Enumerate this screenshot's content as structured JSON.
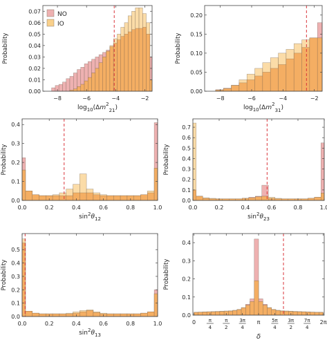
{
  "chart_data": [
    {
      "type": "bar",
      "ylabel": "Probability",
      "xlabel": "log10(Δm²21)",
      "xlim": [
        -9.0,
        -1.5
      ],
      "ylim": [
        0,
        0.075
      ],
      "xticks": [
        {
          "v": -8,
          "t": "−8"
        },
        {
          "v": -6,
          "t": "−6"
        },
        {
          "v": -4,
          "t": "−4"
        },
        {
          "v": -2,
          "t": "−2"
        }
      ],
      "yticks": [
        {
          "v": 0.0,
          "t": "0.00"
        },
        {
          "v": 0.01,
          "t": "0.01"
        },
        {
          "v": 0.02,
          "t": "0.02"
        },
        {
          "v": 0.03,
          "t": "0.03"
        },
        {
          "v": 0.04,
          "t": "0.04"
        },
        {
          "v": 0.05,
          "t": "0.05"
        },
        {
          "v": 0.06,
          "t": "0.06"
        },
        {
          "v": 0.07,
          "t": "0.07"
        }
      ],
      "bin_start": -8.4,
      "bin_width": 0.25,
      "marker": -4.1,
      "legend": {
        "position": "top-left",
        "entries": [
          {
            "label": "NO",
            "color": "#eeb1b1"
          },
          {
            "label": "IO",
            "color": "#f9d08b"
          }
        ]
      },
      "series": [
        {
          "name": "NO",
          "color": "#eeb1b1",
          "values": [
            0.003,
            0.005,
            0.006,
            0.008,
            0.011,
            0.013,
            0.016,
            0.019,
            0.021,
            0.024,
            0.026,
            0.028,
            0.03,
            0.032,
            0.034,
            0.036,
            0.039,
            0.042,
            0.045,
            0.048,
            0.05,
            0.052,
            0.054,
            0.055,
            0.055,
            0.056,
            0.05,
            0.03
          ]
        },
        {
          "name": "IO",
          "color": "#f9d08b",
          "values": [
            0,
            0,
            0,
            0,
            0,
            0.001,
            0.002,
            0.004,
            0.006,
            0.009,
            0.012,
            0.016,
            0.02,
            0.025,
            0.03,
            0.035,
            0.04,
            0.046,
            0.05,
            0.056,
            0.06,
            0.066,
            0.07,
            0.073,
            0.073,
            0.068,
            0.06,
            0.01
          ]
        }
      ]
    },
    {
      "type": "bar",
      "ylabel": "Probability",
      "xlabel": "log10(Δm²31)",
      "xlim": [
        -9.0,
        -1.5
      ],
      "ylim": [
        0,
        0.225
      ],
      "xticks": [
        {
          "v": -8,
          "t": "−8"
        },
        {
          "v": -6,
          "t": "−6"
        },
        {
          "v": -4,
          "t": "−4"
        },
        {
          "v": -2,
          "t": "−2"
        }
      ],
      "yticks": [
        {
          "v": 0.0,
          "t": "0.00"
        },
        {
          "v": 0.05,
          "t": "0.05"
        },
        {
          "v": 0.1,
          "t": "0.10"
        },
        {
          "v": 0.15,
          "t": "0.15"
        },
        {
          "v": 0.2,
          "t": "0.20"
        }
      ],
      "bin_start": -8.3,
      "bin_width": 0.5,
      "marker": -2.5,
      "series": [
        {
          "name": "NO",
          "color": "#eeb1b1",
          "values": [
            0.004,
            0.008,
            0.015,
            0.022,
            0.03,
            0.04,
            0.05,
            0.06,
            0.07,
            0.085,
            0.1,
            0.115,
            0.14,
            0.18,
            0.205,
            0.02
          ]
        },
        {
          "name": "IO",
          "color": "#f9d08b",
          "values": [
            0.003,
            0.007,
            0.016,
            0.03,
            0.045,
            0.06,
            0.075,
            0.088,
            0.1,
            0.11,
            0.125,
            0.135,
            0.14,
            0.14,
            0.135,
            0.03
          ]
        }
      ]
    },
    {
      "type": "bar",
      "ylabel": "Probability",
      "xlabel": "sin²θ12",
      "xlim": [
        0,
        1.0
      ],
      "ylim": [
        0,
        0.43
      ],
      "xticks": [
        {
          "v": 0.0,
          "t": "0.0"
        },
        {
          "v": 0.2,
          "t": "0.2"
        },
        {
          "v": 0.4,
          "t": "0.4"
        },
        {
          "v": 0.6,
          "t": "0.6"
        },
        {
          "v": 0.8,
          "t": "0.8"
        },
        {
          "v": 1.0,
          "t": "1.0"
        }
      ],
      "yticks": [
        {
          "v": 0.0,
          "t": "0.0"
        },
        {
          "v": 0.1,
          "t": "0.1"
        },
        {
          "v": 0.2,
          "t": "0.2"
        },
        {
          "v": 0.3,
          "t": "0.3"
        },
        {
          "v": 0.4,
          "t": "0.4"
        }
      ],
      "bin_start": -0.025,
      "bin_width": 0.05,
      "marker": 0.31,
      "series": [
        {
          "name": "NO",
          "color": "#eeb1b1",
          "values": [
            0.225,
            0.05,
            0.03,
            0.025,
            0.025,
            0.025,
            0.025,
            0.025,
            0.04,
            0.04,
            0.04,
            0.03,
            0.025,
            0.025,
            0.025,
            0.025,
            0.025,
            0.025,
            0.03,
            0.04,
            0.41
          ]
        },
        {
          "name": "IO",
          "color": "#f9d08b",
          "values": [
            0.16,
            0.05,
            0.03,
            0.025,
            0.025,
            0.03,
            0.04,
            0.06,
            0.085,
            0.14,
            0.06,
            0.04,
            0.03,
            0.025,
            0.025,
            0.025,
            0.025,
            0.025,
            0.03,
            0.05,
            0.17
          ]
        }
      ]
    },
    {
      "type": "bar",
      "ylabel": "Probability",
      "xlabel": "sin²θ23",
      "xlim": [
        0,
        1.0
      ],
      "ylim": [
        0,
        0.78
      ],
      "xticks": [
        {
          "v": 0.0,
          "t": "0.0"
        },
        {
          "v": 0.2,
          "t": "0.2"
        },
        {
          "v": 0.4,
          "t": "0.4"
        },
        {
          "v": 0.6,
          "t": "0.6"
        },
        {
          "v": 0.8,
          "t": "0.8"
        },
        {
          "v": 1.0,
          "t": "1.0"
        }
      ],
      "yticks": [
        {
          "v": 0.0,
          "t": "0.0"
        },
        {
          "v": 0.1,
          "t": "0.1"
        },
        {
          "v": 0.2,
          "t": "0.2"
        },
        {
          "v": 0.3,
          "t": "0.3"
        },
        {
          "v": 0.4,
          "t": "0.4"
        },
        {
          "v": 0.5,
          "t": "0.5"
        },
        {
          "v": 0.6,
          "t": "0.6"
        },
        {
          "v": 0.7,
          "t": "0.7"
        }
      ],
      "bin_start": -0.025,
      "bin_width": 0.05,
      "marker": 0.565,
      "series": [
        {
          "name": "NO",
          "color": "#eeb1b1",
          "values": [
            0.1,
            0.04,
            0.02,
            0.015,
            0.015,
            0.015,
            0.015,
            0.015,
            0.02,
            0.03,
            0.04,
            0.145,
            0.02,
            0.015,
            0.015,
            0.015,
            0.015,
            0.015,
            0.02,
            0.03,
            0.55
          ]
        },
        {
          "name": "IO",
          "color": "#f9d08b",
          "values": [
            0.74,
            0.04,
            0.025,
            0.02,
            0.015,
            0.015,
            0.015,
            0.015,
            0.02,
            0.025,
            0.035,
            0.04,
            0.03,
            0.02,
            0.015,
            0.015,
            0.015,
            0.015,
            0.02,
            0.03,
            0.07
          ]
        }
      ]
    },
    {
      "type": "bar",
      "ylabel": "Probability",
      "xlabel": "sin²θ13",
      "xlim": [
        0,
        1.0
      ],
      "ylim": [
        0,
        0.62
      ],
      "xticks": [
        {
          "v": 0.0,
          "t": "0.0"
        },
        {
          "v": 0.2,
          "t": "0.2"
        },
        {
          "v": 0.4,
          "t": "0.4"
        },
        {
          "v": 0.6,
          "t": "0.6"
        },
        {
          "v": 0.8,
          "t": "0.8"
        },
        {
          "v": 1.0,
          "t": "1.0"
        }
      ],
      "yticks": [
        {
          "v": 0.0,
          "t": "0.0"
        },
        {
          "v": 0.1,
          "t": "0.1"
        },
        {
          "v": 0.2,
          "t": "0.2"
        },
        {
          "v": 0.3,
          "t": "0.3"
        },
        {
          "v": 0.4,
          "t": "0.4"
        },
        {
          "v": 0.5,
          "t": "0.5"
        }
      ],
      "bin_start": -0.025,
      "bin_width": 0.05,
      "marker": 0.022,
      "series": [
        {
          "name": "NO",
          "color": "#eeb1b1",
          "values": [
            0.55,
            0.04,
            0.025,
            0.02,
            0.02,
            0.02,
            0.02,
            0.02,
            0.025,
            0.035,
            0.045,
            0.03,
            0.02,
            0.02,
            0.02,
            0.02,
            0.02,
            0.02,
            0.025,
            0.035,
            0.2
          ]
        },
        {
          "name": "IO",
          "color": "#f9d08b",
          "values": [
            0.58,
            0.04,
            0.025,
            0.02,
            0.02,
            0.02,
            0.02,
            0.025,
            0.035,
            0.045,
            0.05,
            0.035,
            0.025,
            0.02,
            0.02,
            0.02,
            0.02,
            0.02,
            0.025,
            0.035,
            0.17
          ]
        }
      ]
    },
    {
      "type": "bar",
      "ylabel": "Probability",
      "xlabel": "δ",
      "xlim": [
        -0.05,
        6.33
      ],
      "ylim": [
        0,
        0.45
      ],
      "xticks": [
        {
          "v": 0,
          "t": "0"
        },
        {
          "v": 0.785,
          "t": "π/4"
        },
        {
          "v": 1.571,
          "t": "π/2"
        },
        {
          "v": 2.356,
          "t": "3π/4"
        },
        {
          "v": 3.1416,
          "t": "π"
        },
        {
          "v": 3.927,
          "t": "5π/4"
        },
        {
          "v": 4.712,
          "t": "3π/2"
        },
        {
          "v": 5.498,
          "t": "7π/4"
        },
        {
          "v": 6.283,
          "t": "2π"
        }
      ],
      "yticks": [
        {
          "v": 0.0,
          "t": "0.0"
        },
        {
          "v": 0.1,
          "t": "0.1"
        },
        {
          "v": 0.2,
          "t": "0.2"
        },
        {
          "v": 0.3,
          "t": "0.3"
        },
        {
          "v": 0.4,
          "t": "0.4"
        }
      ],
      "bin_start": 0,
      "bin_width": 0.2094,
      "marker": 4.35,
      "series": [
        {
          "name": "NO",
          "color": "#eeb1b1",
          "values": [
            0.015,
            0.016,
            0.017,
            0.018,
            0.018,
            0.019,
            0.02,
            0.021,
            0.022,
            0.025,
            0.03,
            0.04,
            0.06,
            0.09,
            0.42,
            0.09,
            0.06,
            0.04,
            0.03,
            0.025,
            0.022,
            0.021,
            0.02,
            0.019,
            0.018,
            0.018,
            0.017,
            0.016,
            0.015,
            0.015
          ]
        },
        {
          "name": "IO",
          "color": "#f9d08b",
          "values": [
            0.016,
            0.017,
            0.018,
            0.019,
            0.02,
            0.021,
            0.022,
            0.023,
            0.024,
            0.027,
            0.032,
            0.042,
            0.055,
            0.075,
            0.19,
            0.075,
            0.055,
            0.042,
            0.032,
            0.027,
            0.024,
            0.023,
            0.022,
            0.021,
            0.02,
            0.019,
            0.018,
            0.017,
            0.016,
            0.016
          ]
        }
      ]
    }
  ]
}
